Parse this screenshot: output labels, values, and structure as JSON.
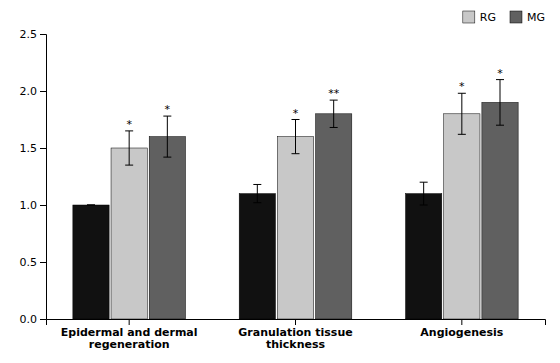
{
  "chart_data": {
    "type": "bar",
    "categories": [
      "Epidermal and dermal regeneration",
      "Granulation tissue thickness",
      "Angiogenesis"
    ],
    "series": [
      {
        "color": "#111111",
        "values": [
          1.0,
          1.1,
          1.1
        ],
        "errors": [
          0.0,
          0.08,
          0.1
        ]
      },
      {
        "name": "RG",
        "color": "#c8c8c8",
        "values": [
          1.5,
          1.6,
          1.8
        ],
        "errors": [
          0.15,
          0.15,
          0.18
        ],
        "significance": [
          "*",
          "*",
          "*"
        ]
      },
      {
        "name": "MG",
        "color": "#606060",
        "values": [
          1.6,
          1.8,
          1.9
        ],
        "errors": [
          0.18,
          0.12,
          0.2
        ],
        "significance": [
          "*",
          "**",
          "*"
        ]
      }
    ],
    "ylim": [
      0,
      2.5
    ],
    "yticks": [
      {
        "value": 0,
        "label": "0.0"
      },
      0.5,
      {
        "value": 1,
        "label": "1.0"
      },
      1.5,
      {
        "value": 2,
        "label": "2.0"
      },
      2.5
    ],
    "grid": false,
    "legend": "upper right"
  }
}
